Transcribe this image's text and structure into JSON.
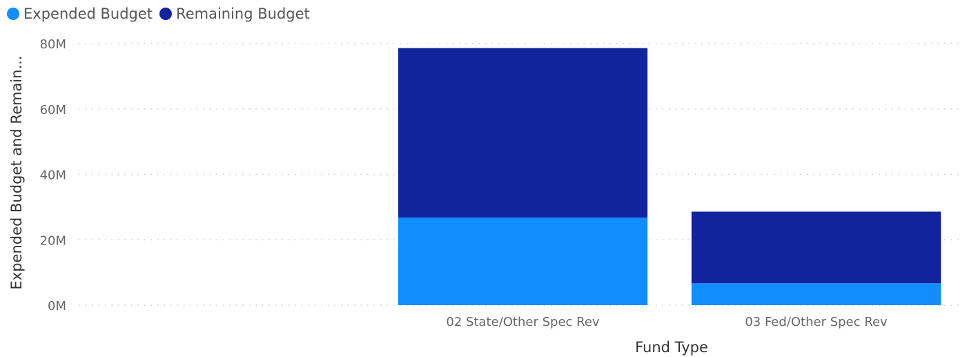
{
  "chart_data": {
    "type": "bar",
    "stacked": true,
    "categories": [
      "",
      "02 State/Other Spec Rev",
      "03 Fed/Other Spec Rev"
    ],
    "series": [
      {
        "name": "Expended Budget",
        "color": "#118dff",
        "values": [
          0,
          26.8,
          6.7
        ]
      },
      {
        "name": "Remaining Budget",
        "color": "#12239e",
        "values": [
          0,
          51.8,
          21.9
        ]
      }
    ],
    "xlabel": "Fund Type",
    "ylabel": "Expended Budget and Remain...",
    "ylim": [
      0,
      80
    ],
    "y_ticks": [
      {
        "value": 0,
        "label": "0M"
      },
      {
        "value": 20,
        "label": "20M"
      },
      {
        "value": 40,
        "label": "40M"
      },
      {
        "value": 60,
        "label": "60M"
      },
      {
        "value": 80,
        "label": "80M"
      }
    ],
    "grid": true,
    "legend_position": "top-left"
  }
}
